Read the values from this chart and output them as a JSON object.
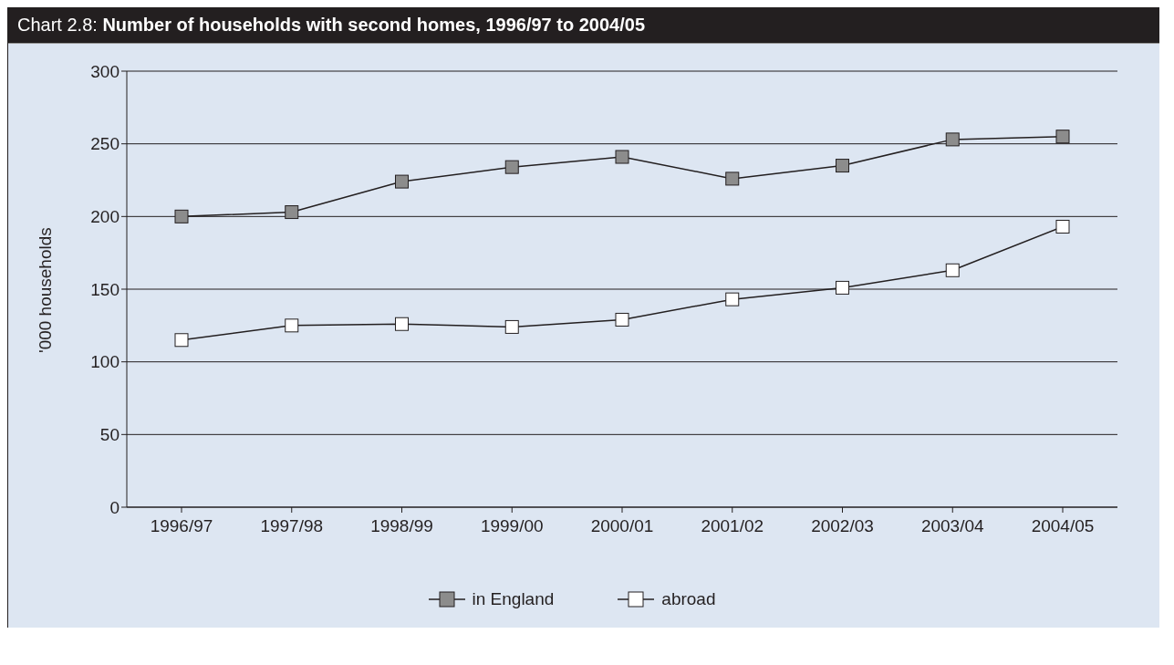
{
  "chart_data": {
    "type": "line",
    "title": "Chart 2.8: Number of households with second homes, 1996/97 to 2004/05",
    "ylabel": "'000 households",
    "categories": [
      "1996/97",
      "1997/98",
      "1998/99",
      "1999/00",
      "2000/01",
      "2001/02",
      "2002/03",
      "2003/04",
      "2004/05"
    ],
    "series": [
      {
        "name": "in England",
        "color": "#8c8c8c",
        "values": [
          200,
          203,
          224,
          234,
          241,
          226,
          235,
          253,
          255
        ]
      },
      {
        "name": "abroad",
        "color": "#ffffff",
        "values": [
          115,
          125,
          126,
          124,
          129,
          143,
          151,
          163,
          193
        ]
      }
    ],
    "ylim": [
      0,
      300
    ],
    "yticks": [
      0,
      50,
      100,
      150,
      200,
      250,
      300
    ],
    "grid": "y",
    "legend": "bottom",
    "marker": "square",
    "line_style": "solid"
  }
}
